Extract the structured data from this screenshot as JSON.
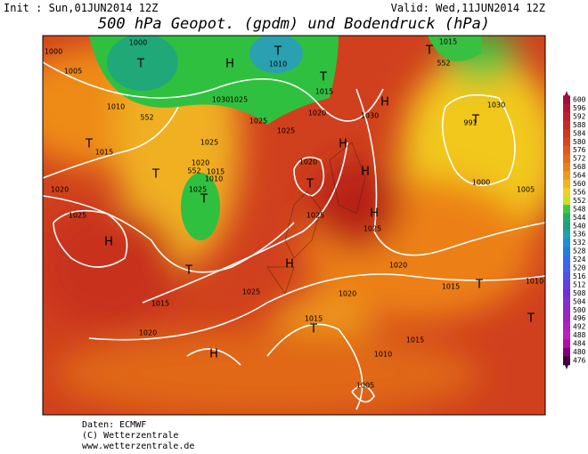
{
  "header": {
    "init": "Init : Sun,01JUN2014 12Z",
    "valid": "Valid: Wed,11JUN2014 12Z",
    "title": "500 hPa Geopot. (gpdm) und Bodendruck (hPa)"
  },
  "colorbar": {
    "levels": [
      600,
      596,
      592,
      588,
      584,
      580,
      576,
      572,
      568,
      564,
      560,
      556,
      552,
      548,
      544,
      540,
      536,
      532,
      528,
      524,
      520,
      516,
      512,
      508,
      504,
      500,
      496,
      492,
      488,
      484,
      480,
      476
    ]
  },
  "map_labels": [
    "1000",
    "1005",
    "1000",
    "T",
    "1010",
    "552",
    "H",
    "T",
    "1010",
    "1025",
    "1030",
    "1025",
    "1015",
    "1020",
    "T",
    "1015",
    "552",
    "T",
    "1030",
    "H",
    "1025",
    "1025",
    "1020",
    "1015",
    "1010",
    "552",
    "T",
    "1025",
    "T",
    "1015",
    "T",
    "1020",
    "1025",
    "H",
    "1020",
    "T",
    "H",
    "H",
    "H",
    "1025",
    "1025",
    "H",
    "T",
    "1015",
    "1025",
    "1020",
    "1020",
    "1015",
    "T",
    "1010",
    "T",
    "1020",
    "H",
    "1015",
    "T",
    "1015",
    "1010",
    "1005",
    "1030",
    "T",
    "991",
    "1000",
    "1005"
  ],
  "footer": {
    "source": "Daten: ECMWF",
    "copyright": "(C) Wetterzentrale",
    "url": "www.wetterzentrale.de"
  }
}
